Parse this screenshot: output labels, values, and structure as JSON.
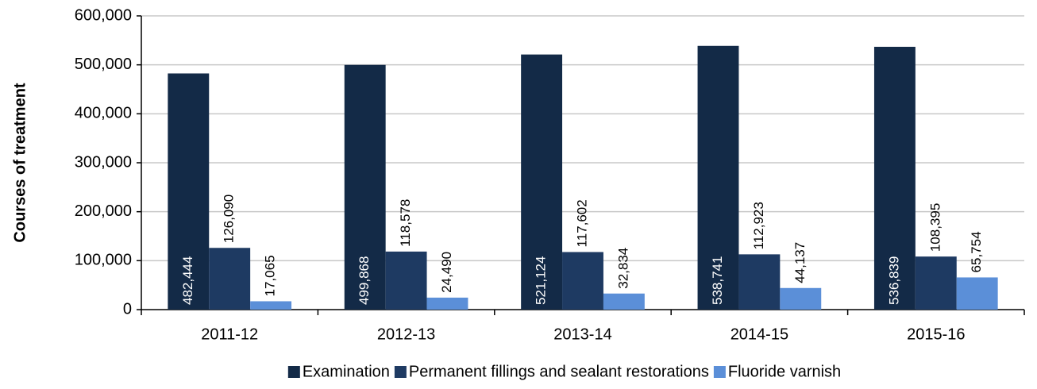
{
  "chart_data": {
    "type": "bar",
    "y_label": "Courses of treatment",
    "categories": [
      "2011-12",
      "2012-13",
      "2013-14",
      "2014-15",
      "2015-16"
    ],
    "series": [
      {
        "name": "Examination",
        "color": "#132a47",
        "values": [
          482444,
          499868,
          521124,
          538741,
          536839
        ],
        "value_labels": [
          "482,444",
          "499,868",
          "521,124",
          "538,741",
          "536,839"
        ]
      },
      {
        "name": "Permanent fillings and sealant restorations",
        "color": "#1e3a62",
        "values": [
          126090,
          118578,
          117602,
          112923,
          108395
        ],
        "value_labels": [
          "126,090",
          "118,578",
          "117,602",
          "112,923",
          "108,395"
        ]
      },
      {
        "name": "Fluoride varnish",
        "color": "#5b8fd8",
        "values": [
          17065,
          24490,
          32834,
          44137,
          65754
        ],
        "value_labels": [
          "17,065",
          "24,490",
          "32,834",
          "44,137",
          "65,754"
        ]
      }
    ],
    "ylim": [
      0,
      600000
    ],
    "yticks": [
      0,
      {
        "value": 100000,
        "label": "100,000"
      },
      {
        "value": 200000,
        "label": "200,000"
      },
      {
        "value": 300000,
        "label": "300,000"
      },
      {
        "value": 400000,
        "label": "400,000"
      },
      {
        "value": 500000,
        "label": "500,000"
      },
      {
        "value": 600000,
        "label": "600,000"
      }
    ],
    "grid": true,
    "legend": "bottom"
  }
}
